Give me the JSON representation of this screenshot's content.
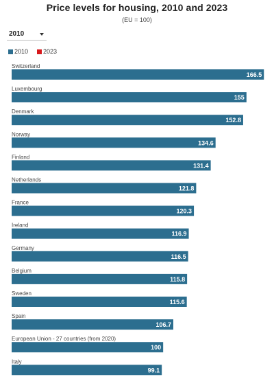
{
  "chart_data": {
    "type": "bar",
    "orientation": "horizontal",
    "title": "Price levels for housing, 2010 and 2023",
    "subtitle": "(EU = 100)",
    "categories": [
      "Switzerland",
      "Luxembourg",
      "Denmark",
      "Norway",
      "Finland",
      "Netherlands",
      "France",
      "Ireland",
      "Germany",
      "Belgium",
      "Sweden",
      "Spain",
      "European Union - 27 countries (from 2020)",
      "Italy"
    ],
    "series": [
      {
        "name": "2010",
        "color": "#2c6e8f",
        "values": [
          166.5,
          155,
          152.8,
          134.6,
          131.4,
          121.8,
          120.3,
          116.9,
          116.5,
          115.8,
          115.6,
          106.7,
          100,
          99.1
        ]
      }
    ],
    "legend": [
      {
        "name": "2010",
        "color": "#2c6e8f"
      },
      {
        "name": "2023",
        "color": "#d7191c"
      }
    ],
    "legend_position": "top-left",
    "xlim": [
      0,
      170
    ],
    "grid": false
  },
  "controls": {
    "year_select": {
      "value": "2010"
    }
  }
}
